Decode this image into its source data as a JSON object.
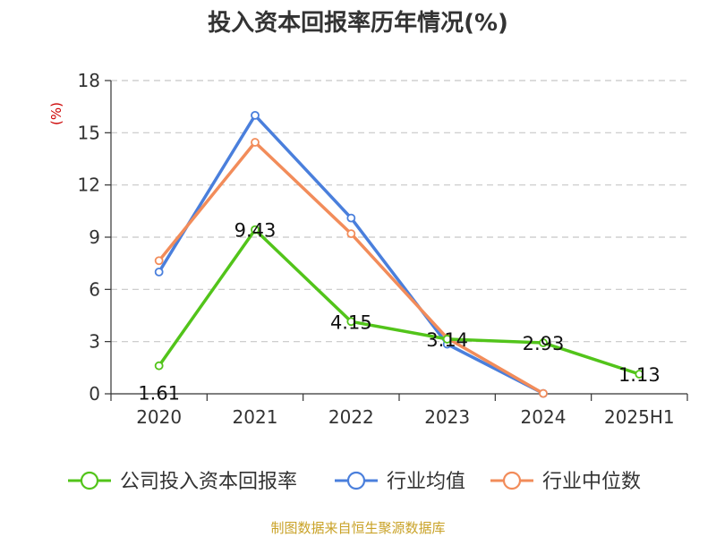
{
  "chart_data": {
    "type": "line",
    "title": "投入资本回报率历年情况(%)",
    "ylabel": "(%)",
    "xlabel": "",
    "categories": [
      "2020",
      "2021",
      "2022",
      "2023",
      "2024",
      "2025H1"
    ],
    "ylim": [
      0,
      18
    ],
    "yticks": [
      0,
      3,
      6,
      9,
      12,
      15,
      18
    ],
    "grid": true,
    "legend_position": "bottom",
    "series": [
      {
        "name": "公司投入资本回报率",
        "color": "#52c41a",
        "values": [
          1.61,
          9.43,
          4.15,
          3.14,
          2.93,
          1.13
        ],
        "labels": true
      },
      {
        "name": "行业均值",
        "color": "#4a7fdc",
        "values": [
          7.0,
          16.0,
          10.1,
          2.85,
          0.02,
          null
        ],
        "labels": false
      },
      {
        "name": "行业中位数",
        "color": "#f28c5a",
        "values": [
          7.65,
          14.45,
          9.2,
          3.2,
          0.02,
          null
        ],
        "labels": false
      }
    ],
    "source": "制图数据来自恒生聚源数据库"
  }
}
